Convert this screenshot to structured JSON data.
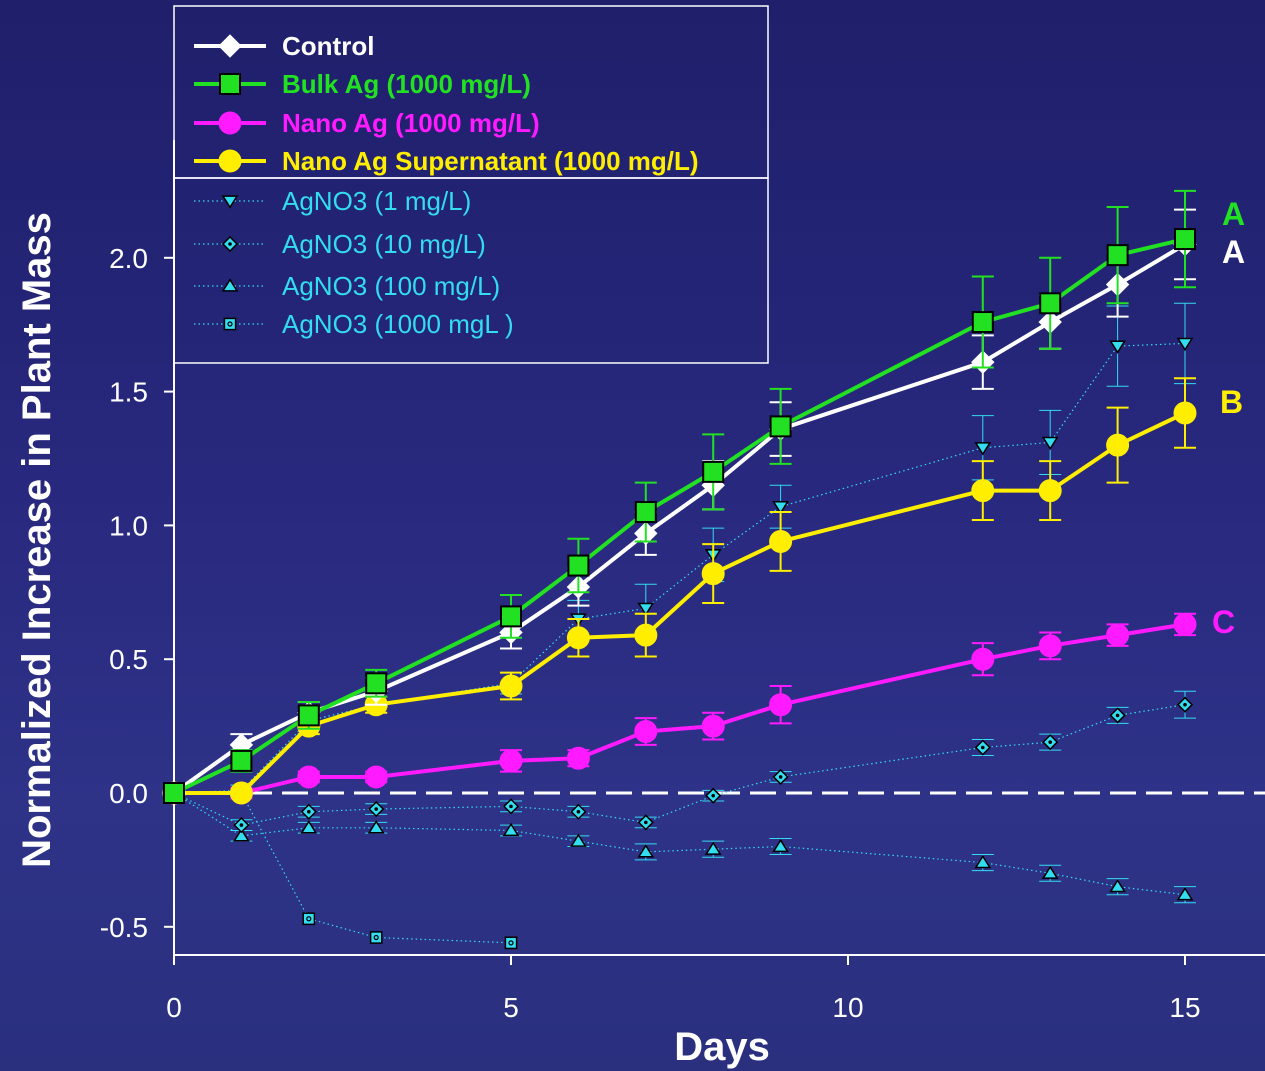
{
  "chart_data": {
    "type": "line",
    "xlabel": "Days",
    "ylabel": "Normalized Increase in Plant Mass",
    "xlim": [
      0,
      16.2
    ],
    "ylim": [
      -0.6,
      2.3
    ],
    "xticks": [
      0,
      5,
      10,
      15
    ],
    "xtick_labels": [
      "0",
      "5",
      "10",
      "15"
    ],
    "yticks": [
      -0.5,
      0.0,
      0.5,
      1.0,
      1.5,
      2.0
    ],
    "ytick_labels": [
      "-0.5",
      "0.0",
      "0.5",
      "1.0",
      "1.5",
      "2.0"
    ],
    "reference_line": {
      "y": 0,
      "style": "dashed",
      "color": "#ffffff"
    },
    "legend_position": "top-left",
    "series": [
      {
        "name": "Control",
        "color": "#ffffff",
        "marker": "diamond",
        "line": "solid",
        "bold": true,
        "x": [
          0,
          1,
          2,
          3,
          5,
          6,
          7,
          8,
          9,
          12,
          13,
          14,
          15
        ],
        "y": [
          0.0,
          0.18,
          0.3,
          0.38,
          0.6,
          0.77,
          0.97,
          1.15,
          1.36,
          1.61,
          1.76,
          1.9,
          2.05
        ],
        "err": [
          0.0,
          0.04,
          0.04,
          0.05,
          0.06,
          0.07,
          0.08,
          0.09,
          0.1,
          0.1,
          0.1,
          0.12,
          0.13
        ],
        "end_label": "A"
      },
      {
        "name": "Bulk Ag (1000 mg/L)",
        "color": "#22e022",
        "marker": "square",
        "line": "solid",
        "bold": true,
        "x": [
          0,
          1,
          2,
          3,
          5,
          6,
          7,
          8,
          9,
          12,
          13,
          14,
          15
        ],
        "y": [
          0.0,
          0.12,
          0.29,
          0.41,
          0.66,
          0.85,
          1.05,
          1.2,
          1.37,
          1.76,
          1.83,
          2.01,
          2.07
        ],
        "err": [
          0.0,
          0.04,
          0.05,
          0.05,
          0.08,
          0.1,
          0.11,
          0.14,
          0.14,
          0.17,
          0.17,
          0.18,
          0.18
        ],
        "end_label": "A"
      },
      {
        "name": "Nano Ag (1000 mg/L)",
        "color": "#ff1aff",
        "marker": "circle",
        "line": "solid",
        "bold": true,
        "x": [
          0,
          1,
          2,
          3,
          5,
          6,
          7,
          8,
          9,
          12,
          13,
          14,
          15
        ],
        "y": [
          0.0,
          0.0,
          0.06,
          0.06,
          0.12,
          0.13,
          0.23,
          0.25,
          0.33,
          0.5,
          0.55,
          0.59,
          0.63
        ],
        "err": [
          0.0,
          0.02,
          0.02,
          0.02,
          0.04,
          0.03,
          0.05,
          0.05,
          0.07,
          0.06,
          0.05,
          0.04,
          0.04
        ],
        "end_label": "C"
      },
      {
        "name": "Nano Ag Supernatant (1000 mg/L)",
        "color": "#ffee00",
        "marker": "circle",
        "line": "solid",
        "bold": true,
        "x": [
          0,
          1,
          2,
          3,
          5,
          6,
          7,
          8,
          9,
          12,
          13,
          14,
          15
        ],
        "y": [
          0.0,
          0.0,
          0.25,
          0.33,
          0.4,
          0.58,
          0.59,
          0.82,
          0.94,
          1.13,
          1.13,
          1.3,
          1.42
        ],
        "err": [
          0.0,
          0.01,
          0.03,
          0.03,
          0.05,
          0.07,
          0.08,
          0.11,
          0.11,
          0.11,
          0.11,
          0.14,
          0.13
        ],
        "end_label": "B"
      },
      {
        "name": "AgNO3 (1 mg/L)",
        "color": "#33dcee",
        "marker": "triangle-down",
        "line": "dotted",
        "bold": false,
        "x": [
          0,
          1,
          2,
          3,
          5,
          6,
          7,
          8,
          9,
          12,
          13,
          14,
          15
        ],
        "y": [
          0.0,
          0.01,
          0.27,
          0.33,
          0.41,
          0.65,
          0.69,
          0.89,
          1.07,
          1.29,
          1.31,
          1.67,
          1.68
        ],
        "err": [
          0.0,
          0.02,
          0.03,
          0.03,
          0.04,
          0.07,
          0.09,
          0.1,
          0.08,
          0.12,
          0.12,
          0.15,
          0.15
        ]
      },
      {
        "name": "AgNO3 (10 mg/L)",
        "color": "#33dcee",
        "marker": "diamond-open",
        "line": "dotted",
        "bold": false,
        "x": [
          0,
          1,
          2,
          3,
          5,
          6,
          7,
          8,
          9,
          12,
          13,
          14,
          15
        ],
        "y": [
          0.0,
          -0.12,
          -0.07,
          -0.06,
          -0.05,
          -0.07,
          -0.11,
          -0.01,
          0.06,
          0.17,
          0.19,
          0.29,
          0.33
        ],
        "err": [
          0.0,
          0.02,
          0.02,
          0.02,
          0.02,
          0.02,
          0.02,
          0.02,
          0.02,
          0.03,
          0.03,
          0.03,
          0.05
        ]
      },
      {
        "name": "AgNO3 (100 mg/L)",
        "color": "#33dcee",
        "marker": "triangle-up",
        "line": "dotted",
        "bold": false,
        "x": [
          0,
          1,
          2,
          3,
          5,
          6,
          7,
          8,
          9,
          12,
          13,
          14,
          15
        ],
        "y": [
          0.0,
          -0.16,
          -0.13,
          -0.13,
          -0.14,
          -0.18,
          -0.22,
          -0.21,
          -0.2,
          -0.26,
          -0.3,
          -0.35,
          -0.38
        ],
        "err": [
          0.0,
          0.02,
          0.02,
          0.02,
          0.02,
          0.02,
          0.03,
          0.03,
          0.03,
          0.03,
          0.03,
          0.03,
          0.03
        ]
      },
      {
        "name": "AgNO3 (1000 mgL )",
        "color": "#33dcee",
        "marker": "square-open",
        "line": "dotted",
        "bold": false,
        "x": [
          0,
          1,
          2,
          3,
          5
        ],
        "y": [
          0.0,
          0.0,
          -0.47,
          -0.54,
          -0.56
        ],
        "err": [
          0.0,
          0.0,
          0.0,
          0.0,
          0.0
        ]
      }
    ]
  }
}
